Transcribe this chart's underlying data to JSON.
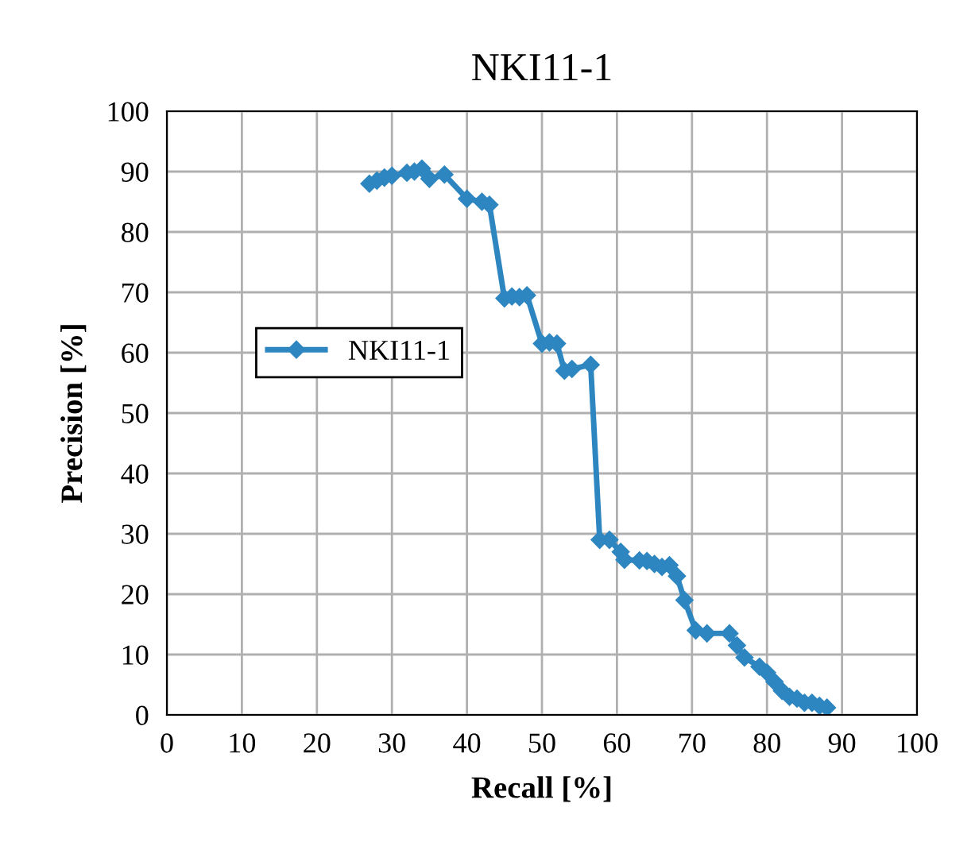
{
  "chart_data": {
    "type": "line",
    "title": "NKI11-1",
    "xlabel": "Recall [%]",
    "ylabel": "Precision [%]",
    "xlim": [
      0,
      100
    ],
    "xticks": [
      0,
      10,
      20,
      30,
      40,
      50,
      60,
      70,
      80,
      90,
      100
    ],
    "ylim": [
      0,
      100
    ],
    "yticks": [
      0,
      10,
      20,
      30,
      40,
      50,
      60,
      70,
      80,
      90,
      100
    ],
    "grid": true,
    "legend": "left",
    "marker": "diamond",
    "line_style": "solid",
    "series": [
      {
        "name": "NKI11-1",
        "color": "#2e86c1",
        "x": [
          27,
          28,
          29,
          30,
          32,
          33,
          34,
          35,
          37,
          40,
          42,
          43,
          45,
          46,
          47,
          48,
          50,
          51,
          52,
          53,
          54,
          56.5,
          57.7,
          59,
          60.5,
          61,
          63,
          64,
          65,
          66,
          67,
          68,
          69,
          70.5,
          72,
          75,
          76,
          77,
          79,
          80,
          81,
          82,
          83,
          84,
          85,
          86,
          87,
          88
        ],
        "values": [
          88,
          88.5,
          89,
          89.3,
          89.8,
          90,
          90.5,
          88.8,
          89.5,
          85.5,
          85,
          84.5,
          69,
          69.3,
          69.2,
          69.5,
          61.5,
          61.7,
          61.5,
          57,
          57.3,
          58,
          29,
          29,
          27,
          25.7,
          25.6,
          25.5,
          25,
          24.5,
          24.8,
          23,
          19,
          14,
          13.5,
          13.5,
          11.5,
          9.5,
          8,
          7,
          5.5,
          4,
          3,
          2.7,
          2,
          2,
          1.5,
          1.2
        ]
      }
    ]
  }
}
